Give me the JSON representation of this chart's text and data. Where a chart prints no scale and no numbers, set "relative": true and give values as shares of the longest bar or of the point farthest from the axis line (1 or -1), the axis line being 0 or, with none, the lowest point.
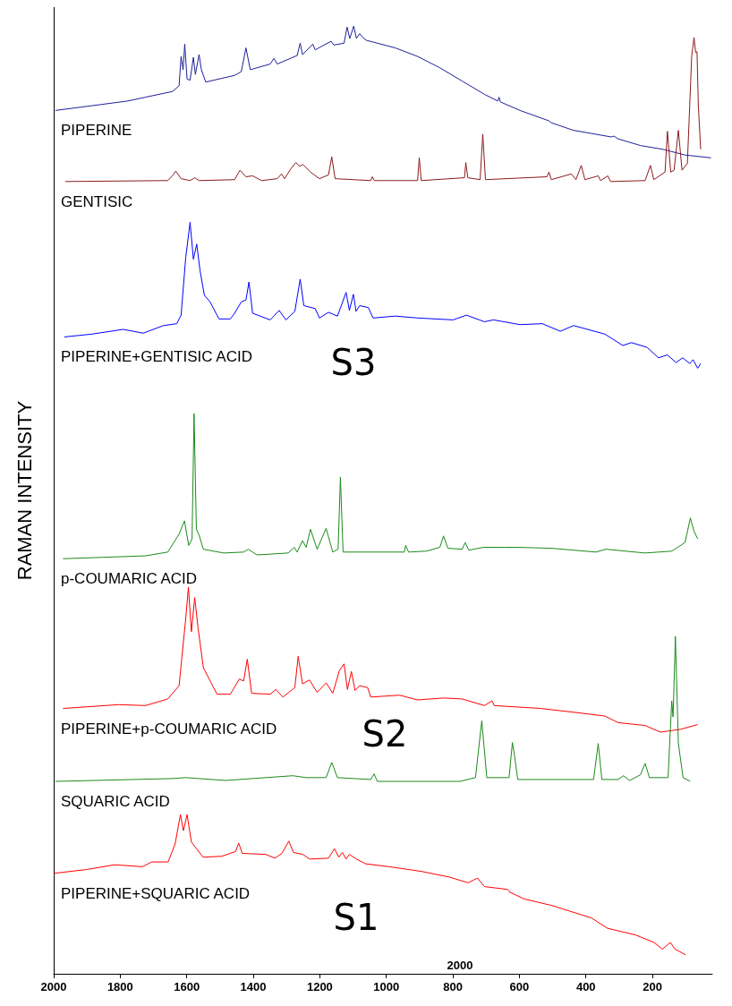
{
  "chart_data": {
    "type": "line",
    "relative": true,
    "ylabel": "RAMAN INTENSITY",
    "xlim": [
      2000,
      20
    ],
    "xticks": [
      2000,
      1800,
      1600,
      1400,
      1200,
      1000,
      800,
      600,
      400,
      200
    ],
    "grid": false,
    "legend": false,
    "marker": "none",
    "line_style": "solid",
    "annotations": [
      "S3",
      "S2",
      "S1",
      "2000"
    ],
    "series": [
      {
        "name": "PIPERINE",
        "color": "#1f1f99",
        "x": [
          1995,
          1885,
          1777,
          1724,
          1643,
          1623,
          1617,
          1611,
          1606,
          1599,
          1590,
          1580,
          1574,
          1563,
          1556,
          1543,
          1456,
          1436,
          1422,
          1409,
          1349,
          1338,
          1328,
          1268,
          1259,
          1252,
          1221,
          1214,
          1166,
          1158,
          1127,
          1118,
          1110,
          1098,
          1090,
          1080,
          1071,
          1060,
          1027,
          973,
          906,
          839,
          772,
          705,
          665,
          661,
          657,
          598,
          511,
          504,
          437,
          323,
          316,
          303,
          236,
          169,
          102,
          24
        ],
        "values": [
          0.911,
          0.916,
          0.921,
          0.925,
          0.931,
          0.937,
          0.968,
          0.954,
          0.981,
          0.944,
          0.943,
          0.967,
          0.949,
          0.97,
          0.954,
          0.941,
          0.948,
          0.952,
          0.977,
          0.954,
          0.96,
          0.966,
          0.96,
          0.969,
          0.982,
          0.97,
          0.981,
          0.975,
          0.984,
          0.98,
          0.982,
          0.999,
          0.987,
          1.0,
          0.987,
          0.992,
          0.988,
          0.985,
          0.982,
          0.977,
          0.968,
          0.956,
          0.942,
          0.928,
          0.921,
          0.925,
          0.92,
          0.911,
          0.9,
          0.898,
          0.89,
          0.883,
          0.884,
          0.881,
          0.874,
          0.87,
          0.864,
          0.861
        ]
      },
      {
        "name": "GENTISIC",
        "color": "#8b1a1a",
        "x": [
          1965,
          1657,
          1643,
          1633,
          1617,
          1590,
          1576,
          1563,
          1456,
          1440,
          1422,
          1402,
          1375,
          1328,
          1315,
          1306,
          1288,
          1272,
          1261,
          1251,
          1228,
          1201,
          1174,
          1164,
          1154,
          1047,
          1042,
          1036,
          906,
          901,
          895,
          765,
          761,
          755,
          718,
          710,
          702,
          517,
          511,
          504,
          444,
          430,
          414,
          403,
          363,
          356,
          334,
          326,
          222,
          206,
          196,
          162,
          155,
          145,
          135,
          122,
          111,
          95,
          82,
          75,
          70,
          66,
          62,
          55
        ],
        "values": [
          0.836,
          0.837,
          0.842,
          0.847,
          0.839,
          0.837,
          0.84,
          0.837,
          0.838,
          0.848,
          0.841,
          0.842,
          0.837,
          0.839,
          0.844,
          0.839,
          0.849,
          0.856,
          0.852,
          0.854,
          0.846,
          0.839,
          0.843,
          0.862,
          0.839,
          0.837,
          0.841,
          0.837,
          0.837,
          0.861,
          0.837,
          0.84,
          0.856,
          0.84,
          0.838,
          0.886,
          0.838,
          0.841,
          0.846,
          0.838,
          0.844,
          0.838,
          0.853,
          0.838,
          0.842,
          0.837,
          0.842,
          0.836,
          0.837,
          0.853,
          0.838,
          0.846,
          0.889,
          0.846,
          0.848,
          0.89,
          0.848,
          0.855,
          0.968,
          0.988,
          0.972,
          0.973,
          0.916,
          0.87
        ]
      },
      {
        "name": "PIPERINE+GENTISIC ACID",
        "color": "#0000ff",
        "x": [
          1968,
          1885,
          1791,
          1731,
          1670,
          1630,
          1617,
          1603,
          1590,
          1580,
          1570,
          1560,
          1547,
          1530,
          1503,
          1469,
          1456,
          1436,
          1422,
          1413,
          1402,
          1349,
          1322,
          1302,
          1275,
          1259,
          1248,
          1214,
          1201,
          1174,
          1147,
          1121,
          1111,
          1099,
          1091,
          1080,
          1054,
          1040,
          973,
          906,
          799,
          759,
          705,
          678,
          598,
          531,
          477,
          437,
          343,
          289,
          263,
          216,
          182,
          155,
          129,
          109,
          88,
          78,
          64,
          55
        ],
        "values": [
          0.672,
          0.675,
          0.68,
          0.676,
          0.684,
          0.686,
          0.695,
          0.756,
          0.793,
          0.754,
          0.77,
          0.742,
          0.716,
          0.709,
          0.691,
          0.691,
          0.697,
          0.709,
          0.711,
          0.73,
          0.697,
          0.69,
          0.7,
          0.69,
          0.699,
          0.733,
          0.705,
          0.702,
          0.692,
          0.698,
          0.694,
          0.719,
          0.7,
          0.717,
          0.699,
          0.705,
          0.703,
          0.692,
          0.694,
          0.692,
          0.69,
          0.695,
          0.688,
          0.69,
          0.685,
          0.686,
          0.678,
          0.684,
          0.675,
          0.663,
          0.666,
          0.661,
          0.65,
          0.653,
          0.645,
          0.65,
          0.644,
          0.648,
          0.639,
          0.644
        ]
      },
      {
        "name": "p-COUMARIC ACID",
        "color": "#1a8a1a",
        "x": [
          1972,
          1724,
          1657,
          1623,
          1607,
          1594,
          1584,
          1578,
          1571,
          1563,
          1550,
          1489,
          1429,
          1415,
          1389,
          1295,
          1277,
          1268,
          1252,
          1241,
          1228,
          1208,
          1181,
          1161,
          1145,
          1138,
          1130,
          946,
          942,
          933,
          879,
          839,
          828,
          815,
          772,
          763,
          752,
          708,
          645,
          607,
          504,
          370,
          340,
          222,
          142,
          102,
          86,
          75,
          64
        ],
        "values": [
          0.438,
          0.441,
          0.445,
          0.464,
          0.478,
          0.452,
          0.459,
          0.591,
          0.469,
          0.463,
          0.448,
          0.444,
          0.445,
          0.448,
          0.442,
          0.444,
          0.45,
          0.445,
          0.457,
          0.45,
          0.469,
          0.448,
          0.47,
          0.445,
          0.448,
          0.524,
          0.445,
          0.445,
          0.452,
          0.445,
          0.446,
          0.45,
          0.462,
          0.449,
          0.448,
          0.455,
          0.447,
          0.45,
          0.45,
          0.45,
          0.449,
          0.445,
          0.448,
          0.444,
          0.446,
          0.455,
          0.481,
          0.467,
          0.459
        ]
      },
      {
        "name": "PIPERINE+p-COUMARIC ACID",
        "color": "#ff0000",
        "x": [
          1972,
          1804,
          1724,
          1657,
          1623,
          1603,
          1595,
          1586,
          1576,
          1566,
          1550,
          1509,
          1469,
          1442,
          1429,
          1418,
          1405,
          1349,
          1332,
          1311,
          1275,
          1265,
          1252,
          1231,
          1208,
          1181,
          1161,
          1141,
          1127,
          1117,
          1105,
          1094,
          1080,
          1056,
          1047,
          960,
          906,
          828,
          772,
          705,
          682,
          676,
          537,
          437,
          343,
          303,
          222,
          176,
          115,
          64
        ],
        "values": [
          0.28,
          0.284,
          0.283,
          0.29,
          0.304,
          0.375,
          0.408,
          0.361,
          0.397,
          0.365,
          0.323,
          0.295,
          0.295,
          0.311,
          0.309,
          0.332,
          0.296,
          0.295,
          0.3,
          0.292,
          0.302,
          0.335,
          0.306,
          0.31,
          0.297,
          0.307,
          0.296,
          0.32,
          0.327,
          0.3,
          0.319,
          0.299,
          0.304,
          0.302,
          0.292,
          0.294,
          0.289,
          0.291,
          0.29,
          0.283,
          0.288,
          0.283,
          0.28,
          0.276,
          0.272,
          0.265,
          0.262,
          0.255,
          0.258,
          0.263
        ]
      },
      {
        "name": "SQUARIC ACID",
        "color": "#1a8a1a",
        "x": [
          1995,
          1643,
          1603,
          1483,
          1281,
          1241,
          1181,
          1164,
          1147,
          1047,
          1037,
          1027,
          779,
          732,
          713,
          698,
          631,
          621,
          614,
          605,
          377,
          363,
          352,
          303,
          287,
          269,
          236,
          222,
          209,
          153,
          142,
          138,
          131,
          122,
          108,
          86
        ],
        "values": [
          0.203,
          0.206,
          0.207,
          0.204,
          0.209,
          0.207,
          0.207,
          0.223,
          0.207,
          0.205,
          0.211,
          0.203,
          0.203,
          0.207,
          0.267,
          0.207,
          0.207,
          0.244,
          0.229,
          0.205,
          0.205,
          0.243,
          0.205,
          0.205,
          0.209,
          0.204,
          0.21,
          0.222,
          0.207,
          0.207,
          0.288,
          0.271,
          0.356,
          0.243,
          0.207,
          0.203
        ]
      },
      {
        "name": "PIPERINE+SQUARIC ACID",
        "color": "#ff0000",
        "x": [
          1999,
          1901,
          1817,
          1733,
          1705,
          1656,
          1635,
          1619,
          1610,
          1599,
          1586,
          1551,
          1495,
          1453,
          1444,
          1433,
          1363,
          1335,
          1314,
          1293,
          1279,
          1251,
          1230,
          1174,
          1156,
          1143,
          1132,
          1121,
          1111,
          1090,
          1062,
          992,
          894,
          810,
          754,
          726,
          705,
          635,
          628,
          586,
          502,
          384,
          335,
          251,
          195,
          170,
          146,
          132,
          100
        ],
        "values": [
          0.106,
          0.11,
          0.115,
          0.113,
          0.118,
          0.118,
          0.137,
          0.168,
          0.151,
          0.168,
          0.139,
          0.123,
          0.124,
          0.129,
          0.138,
          0.127,
          0.126,
          0.122,
          0.127,
          0.14,
          0.128,
          0.126,
          0.121,
          0.122,
          0.132,
          0.123,
          0.128,
          0.121,
          0.126,
          0.121,
          0.116,
          0.113,
          0.108,
          0.102,
          0.096,
          0.101,
          0.092,
          0.089,
          0.086,
          0.079,
          0.072,
          0.059,
          0.048,
          0.041,
          0.033,
          0.026,
          0.033,
          0.026,
          0.02
        ]
      }
    ]
  }
}
